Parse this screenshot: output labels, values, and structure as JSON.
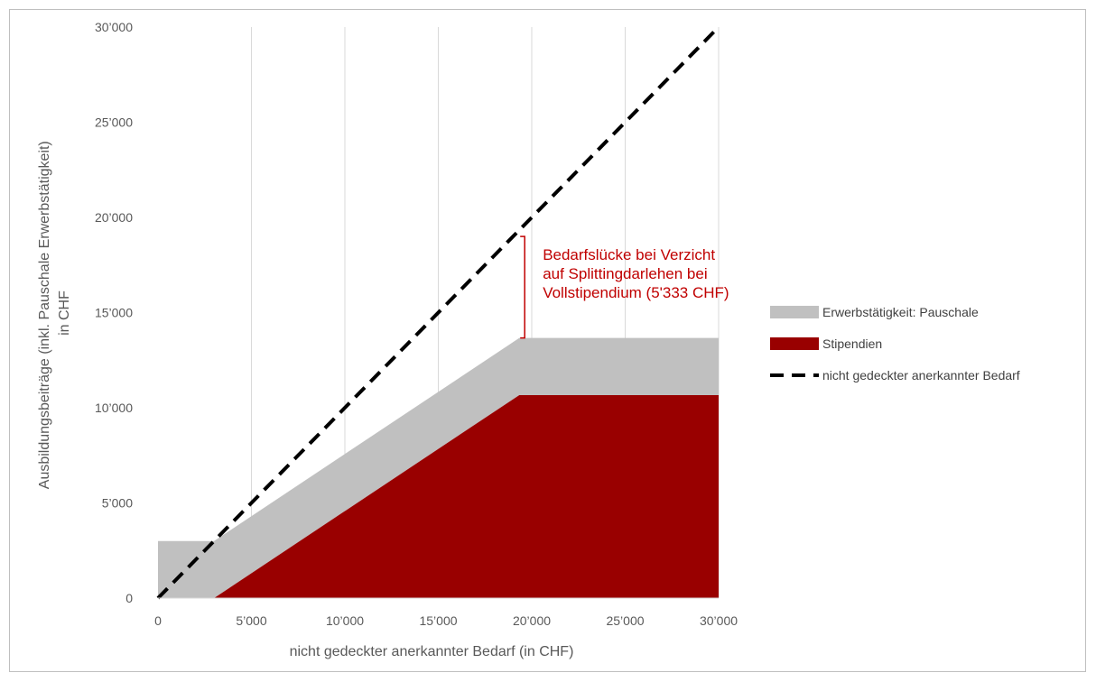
{
  "chart_data": {
    "type": "area",
    "title": "",
    "xlabel": "nicht gedeckter anerkannter Bedarf (in CHF)",
    "ylabel_lines": [
      "Ausbildungsbeiträge (inkl. Pauschale Erwerbstätigkeit)",
      "in CHF"
    ],
    "xlim": [
      0,
      30000
    ],
    "ylim": [
      0,
      30000
    ],
    "x_ticks": [
      0,
      5000,
      10000,
      15000,
      20000,
      25000,
      30000
    ],
    "y_ticks": [
      0,
      5000,
      10000,
      15000,
      20000,
      25000,
      30000
    ],
    "x_tick_labels": [
      "0",
      "5’000",
      "10’000",
      "15’000",
      "20’000",
      "25’000",
      "30’000"
    ],
    "y_tick_labels": [
      "0",
      "5’000",
      "10’000",
      "15’000",
      "20’000",
      "25’000",
      "30’000"
    ],
    "grid": "vertical",
    "legend_position": "right",
    "series": [
      {
        "name": "Stipendien",
        "kind": "area",
        "color": "#990000",
        "points": [
          [
            0,
            0
          ],
          [
            3000,
            0
          ],
          [
            19333,
            10666
          ],
          [
            30000,
            10666
          ]
        ]
      },
      {
        "name": "Erwerbstätigkeit: Pauschale",
        "kind": "stacked-area",
        "color": "#c0c0c0",
        "points": [
          [
            0,
            3000
          ],
          [
            3000,
            3000
          ],
          [
            19333,
            13666
          ],
          [
            30000,
            13666
          ]
        ]
      },
      {
        "name": "nicht gedeckter anerkannter Bedarf",
        "kind": "line",
        "style": "dashed",
        "color": "#000000",
        "points": [
          [
            0,
            0
          ],
          [
            30000,
            30000
          ]
        ]
      }
    ],
    "annotation": {
      "lines": [
        "Bedarfslücke bei Verzicht",
        "auf Splittingdarlehen bei",
        "Vollstipendium (5'333 CHF)"
      ],
      "color": "#c00000",
      "x": 19333,
      "y_from": 13666,
      "y_to": 19000
    }
  }
}
